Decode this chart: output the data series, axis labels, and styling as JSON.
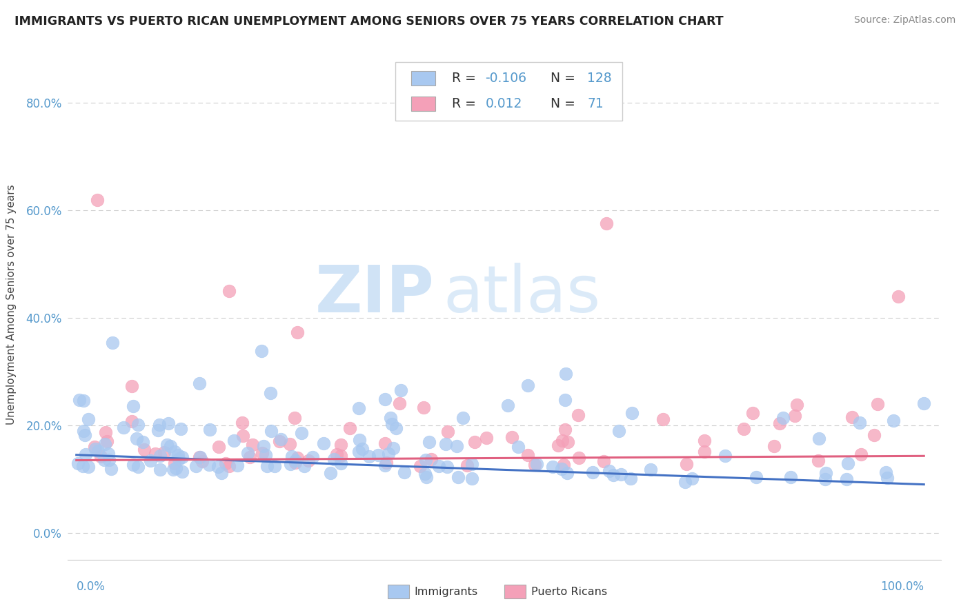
{
  "title": "IMMIGRANTS VS PUERTO RICAN UNEMPLOYMENT AMONG SENIORS OVER 75 YEARS CORRELATION CHART",
  "source": "Source: ZipAtlas.com",
  "ylabel": "Unemployment Among Seniors over 75 years",
  "yaxis_labels": [
    "0.0%",
    "20.0%",
    "40.0%",
    "60.0%",
    "80.0%"
  ],
  "yaxis_values": [
    0.0,
    0.2,
    0.4,
    0.6,
    0.8
  ],
  "color_immigrants": "#A8C8F0",
  "color_puerto_ricans": "#F4A0B8",
  "color_immigrants_line": "#4472C4",
  "color_puerto_ricans_line": "#E06080",
  "watermark_zip": "ZIP",
  "watermark_atlas": "atlas",
  "xlim": [
    0.0,
    1.0
  ],
  "ylim": [
    -0.05,
    0.9
  ],
  "title_color": "#222222",
  "source_color": "#888888",
  "axis_color": "#5599CC",
  "legend_text_color": "#5599CC",
  "legend_r_label": "R = ",
  "legend_imm_r": "-0.106",
  "legend_imm_n_label": "N = ",
  "legend_imm_n": "128",
  "legend_pr_r": "0.012",
  "legend_pr_n": "71",
  "legend_immigrants_label": "Immigrants",
  "legend_pr_label": "Puerto Ricans"
}
